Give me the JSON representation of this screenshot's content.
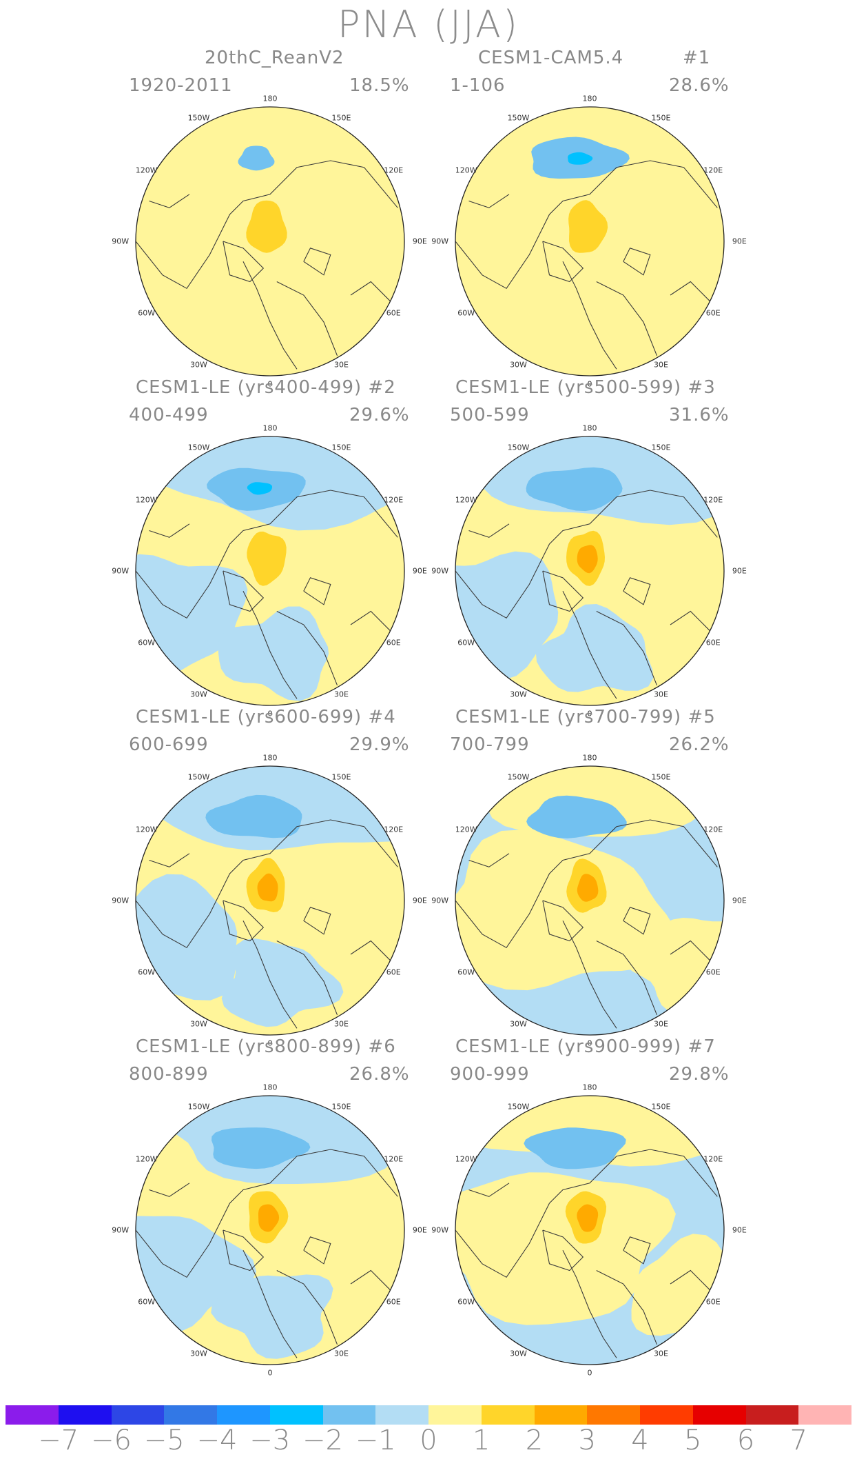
{
  "title": "PNA (JJA)",
  "colors": {
    "pos1": "#FFF59A",
    "pos2": "#FFD52A",
    "pos3": "#FFAA00",
    "neg1": "#B3DDF4",
    "neg2": "#72C1F0",
    "neg3": "#00C1FF",
    "coast": "#3a3a3a"
  },
  "lon_labels": [
    "180",
    "150E",
    "120E",
    "90E",
    "60E",
    "30E",
    "0",
    "30W",
    "60W",
    "90W",
    "120W",
    "150W"
  ],
  "panels": [
    {
      "title": "20thC_ReanV2",
      "period": "1920-2011",
      "pct": "18.5%",
      "num": "",
      "neg_max": 2,
      "pos_max": 2,
      "base": "mixed"
    },
    {
      "title": "CESM1-CAM5.4",
      "period": "1-106",
      "pct": "28.6%",
      "num": "#1",
      "neg_max": 3,
      "pos_max": 2,
      "base": "mixed"
    },
    {
      "title": "CESM1-LE (yrs400-499) #2",
      "period": "400-499",
      "pct": "29.6%",
      "num": "",
      "neg_max": 3,
      "pos_max": 2,
      "base": "yellow"
    },
    {
      "title": "CESM1-LE (yrs500-599) #3",
      "period": "500-599",
      "pct": "31.6%",
      "num": "",
      "neg_max": 2,
      "pos_max": 3,
      "base": "yellow"
    },
    {
      "title": "CESM1-LE (yrs600-699) #4",
      "period": "600-699",
      "pct": "29.9%",
      "num": "",
      "neg_max": 2,
      "pos_max": 3,
      "base": "yellow"
    },
    {
      "title": "CESM1-LE (yrs700-799) #5",
      "period": "700-799",
      "pct": "26.2%",
      "num": "",
      "neg_max": 2,
      "pos_max": 3,
      "base": "blue"
    },
    {
      "title": "CESM1-LE (yrs800-899) #6",
      "period": "800-899",
      "pct": "26.8%",
      "num": "",
      "neg_max": 2,
      "pos_max": 3,
      "base": "yellow"
    },
    {
      "title": "CESM1-LE (yrs900-999) #7",
      "period": "900-999",
      "pct": "29.8%",
      "num": "",
      "neg_max": 2,
      "pos_max": 3,
      "base": "blue"
    }
  ],
  "colorbar": {
    "colors": [
      "#8B1CEB",
      "#1E0FF0",
      "#2D46E6",
      "#3278E6",
      "#1E96FF",
      "#00C1FF",
      "#72C1F0",
      "#B3DDF4",
      "#FFF59A",
      "#FFD52A",
      "#FFAA00",
      "#FF7800",
      "#FF3C00",
      "#E60000",
      "#C81E1E",
      "#FFB4B4"
    ],
    "labels": [
      "−7",
      "−6",
      "−5",
      "−4",
      "−3",
      "−2",
      "−1",
      "0",
      "1",
      "2",
      "3",
      "4",
      "5",
      "6",
      "7"
    ]
  }
}
